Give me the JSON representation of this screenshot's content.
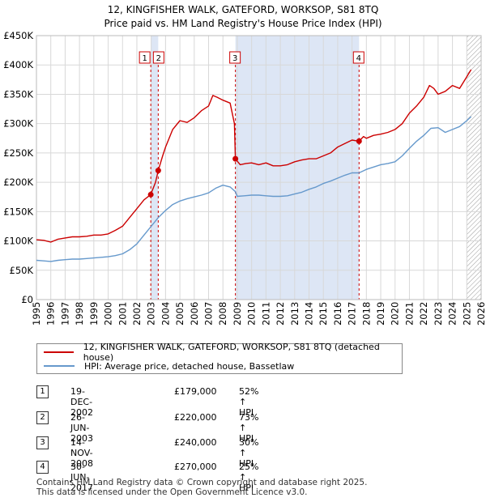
{
  "title_line1": "12, KINGFISHER WALK, GATEFORD, WORKSOP, S81 8TQ",
  "title_line2": "Price paid vs. HM Land Registry's House Price Index (HPI)",
  "legend": {
    "property": "12, KINGFISHER WALK, GATEFORD, WORKSOP, S81 8TQ (detached house)",
    "hpi": "HPI: Average price, detached house, Bassetlaw"
  },
  "transactions": [
    {
      "num": "1",
      "date": "19-DEC-2002",
      "price": "£179,000",
      "hpi": "52% ↑ HPI"
    },
    {
      "num": "2",
      "date": "26-JUN-2003",
      "price": "£220,000",
      "hpi": "73% ↑ HPI"
    },
    {
      "num": "3",
      "date": "14-NOV-2008",
      "price": "£240,000",
      "hpi": "30% ↑ HPI"
    },
    {
      "num": "4",
      "date": "30-JUN-2017",
      "price": "£270,000",
      "hpi": "25% ↑ HPI"
    }
  ],
  "footer_line1": "Contains HM Land Registry data © Crown copyright and database right 2025.",
  "footer_line2": "This data is licensed under the Open Government Licence v3.0.",
  "colors": {
    "property": "#cc0000",
    "hpi": "#6699cc",
    "shade": "#dde6f5",
    "grid": "#d8d8d8",
    "hatch": "#999999"
  },
  "chart_data": {
    "type": "line",
    "title": "Price paid vs. HM Land Registry's House Price Index (HPI)",
    "xlim": [
      1995,
      2026
    ],
    "ylim": [
      0,
      450000
    ],
    "x_ticks": [
      1995,
      1996,
      1997,
      1998,
      1999,
      2000,
      2001,
      2002,
      2003,
      2004,
      2005,
      2006,
      2007,
      2008,
      2009,
      2010,
      2011,
      2012,
      2013,
      2014,
      2015,
      2016,
      2017,
      2018,
      2019,
      2020,
      2021,
      2022,
      2023,
      2024,
      2025,
      2026
    ],
    "y_ticks": [
      0,
      50000,
      100000,
      150000,
      200000,
      250000,
      300000,
      350000,
      400000,
      450000
    ],
    "y_tick_labels": [
      "£0",
      "£50K",
      "£100K",
      "£150K",
      "£200K",
      "£250K",
      "£300K",
      "£350K",
      "£400K",
      "£450K"
    ],
    "shaded_periods": [
      [
        2002.97,
        2003.49
      ],
      [
        2008.87,
        2017.49
      ]
    ],
    "forecast_start": 2025.0,
    "markers": [
      {
        "label": "1",
        "x": 2002.97,
        "y": 179000
      },
      {
        "label": "2",
        "x": 2003.49,
        "y": 220000
      },
      {
        "label": "3",
        "x": 2008.87,
        "y": 240000
      },
      {
        "label": "4",
        "x": 2017.49,
        "y": 270000
      }
    ],
    "series": [
      {
        "name": "12, KINGFISHER WALK, GATEFORD, WORKSOP, S81 8TQ (detached house)",
        "x": [
          1995,
          1995.5,
          1996,
          1996.5,
          1997,
          1997.5,
          1998,
          1998.5,
          1999,
          1999.5,
          2000,
          2000.5,
          2001,
          2001.5,
          2002,
          2002.5,
          2002.97,
          2003.3,
          2003.49,
          2003.8,
          2004,
          2004.5,
          2005,
          2005.5,
          2006,
          2006.5,
          2007,
          2007.3,
          2007.6,
          2008,
          2008.5,
          2008.8,
          2008.87,
          2009.2,
          2009.6,
          2010,
          2010.5,
          2011,
          2011.5,
          2012,
          2012.5,
          2013,
          2013.5,
          2014,
          2014.5,
          2015,
          2015.5,
          2016,
          2016.5,
          2017,
          2017.49,
          2017.8,
          2018,
          2018.5,
          2019,
          2019.5,
          2020,
          2020.5,
          2021,
          2021.5,
          2022,
          2022.4,
          2022.7,
          2023,
          2023.5,
          2024,
          2024.5,
          2025,
          2025.3
        ],
        "y": [
          102000,
          101000,
          98000,
          103000,
          105000,
          107000,
          107000,
          108000,
          110000,
          110000,
          112000,
          118000,
          125000,
          140000,
          155000,
          170000,
          179000,
          200000,
          220000,
          245000,
          260000,
          290000,
          305000,
          302000,
          310000,
          322000,
          330000,
          348000,
          345000,
          340000,
          335000,
          300000,
          240000,
          230000,
          232000,
          233000,
          230000,
          233000,
          228000,
          228000,
          230000,
          235000,
          238000,
          240000,
          240000,
          245000,
          250000,
          260000,
          266000,
          272000,
          270000,
          278000,
          275000,
          280000,
          282000,
          285000,
          290000,
          300000,
          318000,
          330000,
          345000,
          365000,
          360000,
          350000,
          355000,
          365000,
          360000,
          380000,
          392000
        ]
      },
      {
        "name": "HPI: Average price, detached house, Bassetlaw",
        "x": [
          1995,
          1995.5,
          1996,
          1996.5,
          1997,
          1997.5,
          1998,
          1998.5,
          1999,
          1999.5,
          2000,
          2000.5,
          2001,
          2001.5,
          2002,
          2002.5,
          2003,
          2003.5,
          2004,
          2004.5,
          2005,
          2005.5,
          2006,
          2006.5,
          2007,
          2007.5,
          2008,
          2008.5,
          2008.87,
          2009,
          2009.5,
          2010,
          2010.5,
          2011,
          2011.5,
          2012,
          2012.5,
          2013,
          2013.5,
          2014,
          2014.5,
          2015,
          2015.5,
          2016,
          2016.5,
          2017,
          2017.49,
          2018,
          2018.5,
          2019,
          2019.5,
          2020,
          2020.5,
          2021,
          2021.5,
          2022,
          2022.5,
          2023,
          2023.5,
          2024,
          2024.5,
          2025,
          2025.3
        ],
        "y": [
          67000,
          66000,
          65000,
          67000,
          68000,
          69000,
          69000,
          70000,
          71000,
          72000,
          73000,
          75000,
          78000,
          85000,
          95000,
          110000,
          125000,
          140000,
          152000,
          162000,
          168000,
          172000,
          175000,
          178000,
          182000,
          190000,
          195000,
          192000,
          184000,
          176000,
          177000,
          178000,
          178000,
          177000,
          176000,
          176000,
          177000,
          180000,
          183000,
          188000,
          192000,
          198000,
          202000,
          207000,
          212000,
          216000,
          216000,
          222000,
          226000,
          230000,
          232000,
          235000,
          245000,
          258000,
          270000,
          280000,
          292000,
          293000,
          285000,
          290000,
          295000,
          305000,
          312000
        ]
      }
    ]
  }
}
